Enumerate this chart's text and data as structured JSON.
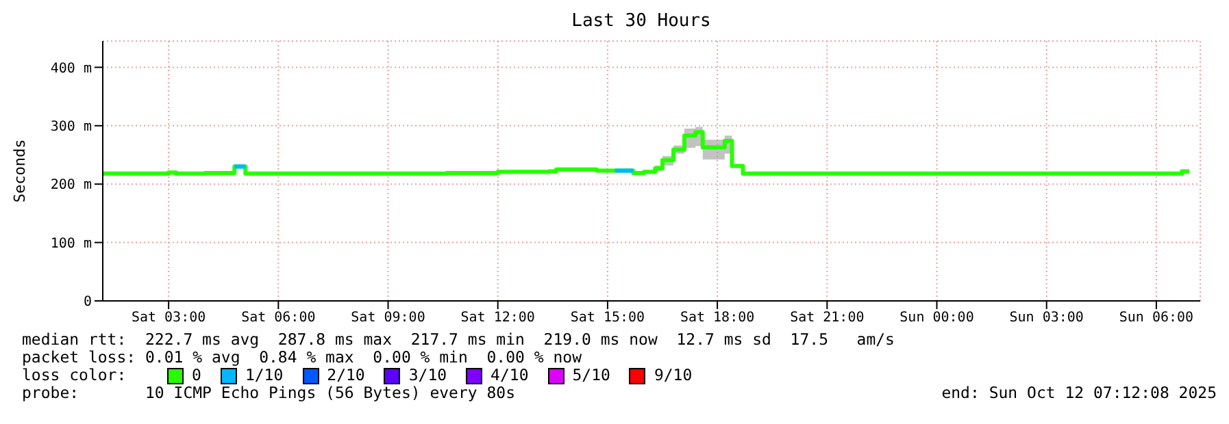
{
  "chart_data": {
    "type": "step",
    "title": "Last 30 Hours",
    "ylabel": "Seconds",
    "legend_title": "loss color:",
    "legend": "bottom",
    "grid": true,
    "marker": "none",
    "line_style": "solid",
    "xlim": [
      "2025-10-11T01:12",
      "2025-10-12T07:12"
    ],
    "xticks": [
      {
        "value": "2025-10-11T03:00",
        "label": "Sat 03:00"
      },
      {
        "value": "2025-10-11T06:00",
        "label": "Sat 06:00"
      },
      {
        "value": "2025-10-11T09:00",
        "label": "Sat 09:00"
      },
      {
        "value": "2025-10-11T12:00",
        "label": "Sat 12:00"
      },
      {
        "value": "2025-10-11T15:00",
        "label": "Sat 15:00"
      },
      {
        "value": "2025-10-11T18:00",
        "label": "Sat 18:00"
      },
      {
        "value": "2025-10-11T21:00",
        "label": "Sat 21:00"
      },
      {
        "value": "2025-10-12T00:00",
        "label": "Sun 00:00"
      },
      {
        "value": "2025-10-12T03:00",
        "label": "Sun 03:00"
      },
      {
        "value": "2025-10-12T06:00",
        "label": "Sun 06:00"
      }
    ],
    "ylim": [
      0,
      445
    ],
    "yticks": [
      0,
      {
        "value": 100,
        "label": "100 m"
      },
      {
        "value": 200,
        "label": "200 m"
      },
      {
        "value": 300,
        "label": "300 m"
      },
      {
        "value": 400,
        "label": "400 m"
      }
    ],
    "series": [
      {
        "name": "0",
        "color": "#26ff00",
        "x": [
          "2025-10-11T01:12",
          "2025-10-11T03:00",
          "2025-10-11T03:12",
          "2025-10-11T04:00",
          "2025-10-11T04:48",
          "2025-10-11T05:06",
          "2025-10-11T10:36",
          "2025-10-11T12:00",
          "2025-10-11T13:24",
          "2025-10-11T13:36",
          "2025-10-11T14:24",
          "2025-10-11T14:42",
          "2025-10-11T15:12",
          "2025-10-11T15:42",
          "2025-10-11T16:00",
          "2025-10-11T16:18",
          "2025-10-11T16:30",
          "2025-10-11T16:48",
          "2025-10-11T17:06",
          "2025-10-11T17:24",
          "2025-10-11T17:36",
          "2025-10-11T17:54",
          "2025-10-11T18:12",
          "2025-10-11T18:24",
          "2025-10-11T18:42",
          "2025-10-12T06:42",
          "2025-10-12T06:54"
        ],
        "values": [
          218,
          220,
          218,
          219,
          230,
          218,
          219,
          221,
          222,
          225,
          225,
          223,
          223,
          219,
          221,
          227,
          241,
          259,
          283,
          289,
          263,
          263,
          274,
          231,
          218,
          222,
          222
        ],
        "lower": [
          null,
          null,
          null,
          null,
          null,
          null,
          null,
          null,
          null,
          null,
          null,
          null,
          null,
          null,
          null,
          222,
          232,
          252,
          262,
          265,
          242,
          242,
          252,
          226,
          null,
          null,
          null
        ],
        "upper": [
          null,
          null,
          null,
          null,
          null,
          null,
          null,
          null,
          null,
          null,
          null,
          null,
          null,
          null,
          null,
          232,
          248,
          266,
          295,
          298,
          276,
          276,
          283,
          236,
          null,
          null,
          null
        ]
      },
      {
        "name": "1/10",
        "color": "#00b8ff",
        "x": [
          "2025-10-11T04:48",
          "2025-10-11T05:06",
          "2025-10-11T10:00",
          "2025-10-11T15:12",
          "2025-10-11T15:42"
        ],
        "values": [
          230,
          230,
          null,
          223,
          223
        ]
      },
      {
        "name": "2/10",
        "color": "#0059ff"
      },
      {
        "name": "3/10",
        "color": "#5e00ff"
      },
      {
        "name": "4/10",
        "color": "#7e00ff"
      },
      {
        "name": "5/10",
        "color": "#dd00ff"
      },
      {
        "name": "9/10",
        "color": "#ff0000"
      }
    ],
    "annotations": [
      "median rtt:  222.7 ms avg  287.8 ms max  217.7 ms min  219.0 ms now  12.7 ms sd  17.5   am/s",
      "packet loss: 0.01 % avg  0.84 % max  0.00 % min  0.00 % now",
      "probe:       10 ICMP Echo Pings (56 Bytes) every 80s",
      "end: Sun Oct 12 07:12:08 2025"
    ]
  }
}
